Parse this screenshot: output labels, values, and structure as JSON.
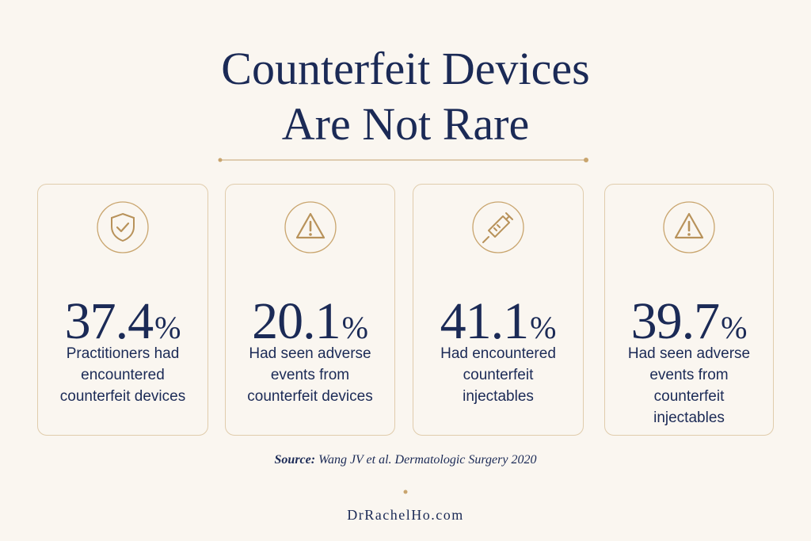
{
  "header": {
    "title_lines": [
      "Counterfeit Devices",
      "Are Not Rare"
    ]
  },
  "stats": [
    {
      "value": "37.4",
      "unit": "%",
      "lines": [
        "Practitioners had",
        "encountered",
        "counterfeit devices"
      ]
    },
    {
      "value": "20.1",
      "unit": "%",
      "lines": [
        "Had seen adverse",
        "events from",
        "counterfeit devices"
      ]
    },
    {
      "value": "41.1",
      "unit": "%",
      "lines": [
        "Had encountered",
        "counterfeit",
        "injectables"
      ]
    },
    {
      "value": "39.7",
      "unit": "%",
      "lines": [
        "Had seen adverse",
        "events from",
        "counterfeit",
        "injectables"
      ]
    }
  ],
  "source": {
    "label": "Source:",
    "text": "Wang JV et al. Dermatologic Surgery 2020"
  },
  "footer": "DrRachelHo.com"
}
